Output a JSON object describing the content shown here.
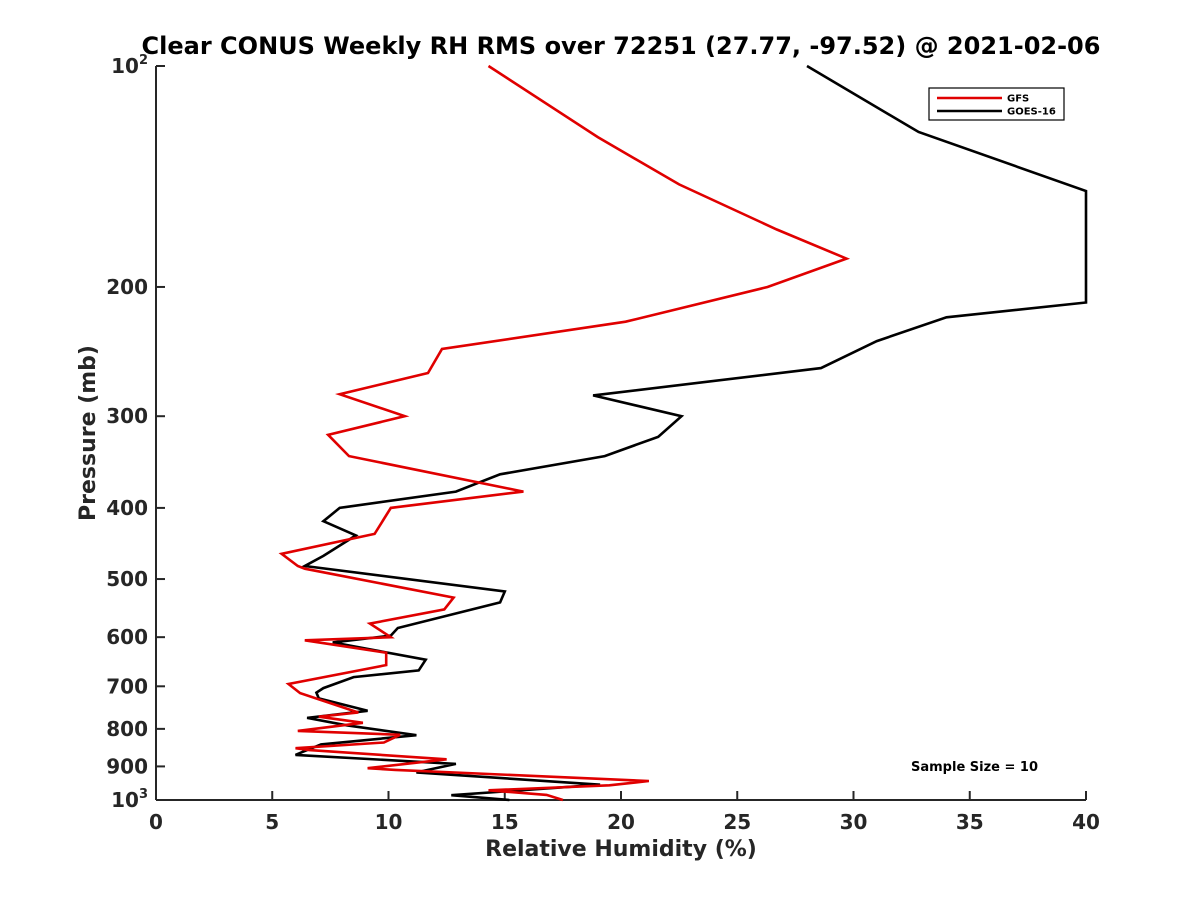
{
  "chart_data": {
    "type": "line",
    "title": "Clear CONUS Weekly RH RMS over 72251 (27.77, -97.52) @ 2021-02-06",
    "xlabel": "Relative Humidity (%)",
    "ylabel": "Pressure (mb)",
    "xlim": [
      0,
      40
    ],
    "ylim": [
      100,
      1000
    ],
    "y_scale": "log",
    "y_reversed": true,
    "x_ticks": [
      0,
      5,
      10,
      15,
      20,
      25,
      30,
      35,
      40
    ],
    "y_ticks": [
      {
        "value": 100,
        "base": "10",
        "exp": "2"
      },
      {
        "value": 200,
        "label": "200"
      },
      {
        "value": 300,
        "label": "300"
      },
      {
        "value": 400,
        "label": "400"
      },
      {
        "value": 500,
        "label": "500"
      },
      {
        "value": 600,
        "label": "600"
      },
      {
        "value": 700,
        "label": "700"
      },
      {
        "value": 800,
        "label": "800"
      },
      {
        "value": 900,
        "label": "900"
      },
      {
        "value": 1000,
        "base": "10",
        "exp": "3"
      }
    ],
    "grid": false,
    "legend_position": "top-right",
    "annotation": "Sample Size = 10",
    "series": [
      {
        "name": "GFS",
        "color": "#e00000",
        "points": [
          {
            "x": 14.3,
            "p": 100
          },
          {
            "x": 19.0,
            "p": 125
          },
          {
            "x": 22.5,
            "p": 145
          },
          {
            "x": 26.7,
            "p": 167
          },
          {
            "x": 29.7,
            "p": 183
          },
          {
            "x": 26.3,
            "p": 200
          },
          {
            "x": 20.2,
            "p": 223
          },
          {
            "x": 12.3,
            "p": 243
          },
          {
            "x": 11.7,
            "p": 262
          },
          {
            "x": 7.9,
            "p": 280
          },
          {
            "x": 10.7,
            "p": 300
          },
          {
            "x": 7.4,
            "p": 318
          },
          {
            "x": 8.3,
            "p": 340
          },
          {
            "x": 15.8,
            "p": 380
          },
          {
            "x": 10.1,
            "p": 400
          },
          {
            "x": 9.4,
            "p": 434
          },
          {
            "x": 5.4,
            "p": 462
          },
          {
            "x": 6.1,
            "p": 480
          },
          {
            "x": 6.4,
            "p": 484
          },
          {
            "x": 12.8,
            "p": 530
          },
          {
            "x": 12.4,
            "p": 550
          },
          {
            "x": 9.2,
            "p": 575
          },
          {
            "x": 10.1,
            "p": 600
          },
          {
            "x": 6.4,
            "p": 606
          },
          {
            "x": 9.9,
            "p": 630
          },
          {
            "x": 9.9,
            "p": 655
          },
          {
            "x": 5.7,
            "p": 695
          },
          {
            "x": 6.2,
            "p": 715
          },
          {
            "x": 8.7,
            "p": 760
          },
          {
            "x": 7.0,
            "p": 770
          },
          {
            "x": 8.9,
            "p": 785
          },
          {
            "x": 6.1,
            "p": 805
          },
          {
            "x": 10.5,
            "p": 815
          },
          {
            "x": 9.8,
            "p": 835
          },
          {
            "x": 6.0,
            "p": 850
          },
          {
            "x": 6.6,
            "p": 855
          },
          {
            "x": 12.5,
            "p": 880
          },
          {
            "x": 9.1,
            "p": 905
          },
          {
            "x": 10.3,
            "p": 910
          },
          {
            "x": 21.2,
            "p": 942
          },
          {
            "x": 19.5,
            "p": 955
          },
          {
            "x": 14.3,
            "p": 970
          },
          {
            "x": 16.8,
            "p": 984
          },
          {
            "x": 17.5,
            "p": 1000
          }
        ]
      },
      {
        "name": "GOES-16",
        "color": "#000000",
        "points": [
          {
            "x": 28.0,
            "p": 100
          },
          {
            "x": 32.8,
            "p": 123
          },
          {
            "x": 40.0,
            "p": 148
          },
          {
            "x": 40.0,
            "p": 210
          },
          {
            "x": 34.0,
            "p": 220
          },
          {
            "x": 31.0,
            "p": 237
          },
          {
            "x": 28.6,
            "p": 258
          },
          {
            "x": 18.8,
            "p": 281
          },
          {
            "x": 22.6,
            "p": 300
          },
          {
            "x": 21.6,
            "p": 320
          },
          {
            "x": 19.3,
            "p": 340
          },
          {
            "x": 14.8,
            "p": 360
          },
          {
            "x": 12.9,
            "p": 380
          },
          {
            "x": 7.9,
            "p": 400
          },
          {
            "x": 7.2,
            "p": 417
          },
          {
            "x": 8.6,
            "p": 436
          },
          {
            "x": 7.2,
            "p": 465
          },
          {
            "x": 6.4,
            "p": 480
          },
          {
            "x": 15.0,
            "p": 520
          },
          {
            "x": 14.8,
            "p": 538
          },
          {
            "x": 10.4,
            "p": 583
          },
          {
            "x": 10.1,
            "p": 597
          },
          {
            "x": 7.6,
            "p": 610
          },
          {
            "x": 11.6,
            "p": 644
          },
          {
            "x": 11.3,
            "p": 666
          },
          {
            "x": 8.5,
            "p": 680
          },
          {
            "x": 7.2,
            "p": 704
          },
          {
            "x": 6.9,
            "p": 714
          },
          {
            "x": 7.0,
            "p": 727
          },
          {
            "x": 9.1,
            "p": 756
          },
          {
            "x": 6.5,
            "p": 773
          },
          {
            "x": 8.2,
            "p": 791
          },
          {
            "x": 11.2,
            "p": 816
          },
          {
            "x": 7.1,
            "p": 840
          },
          {
            "x": 6.3,
            "p": 860
          },
          {
            "x": 6.0,
            "p": 868
          },
          {
            "x": 12.9,
            "p": 893
          },
          {
            "x": 11.2,
            "p": 917
          },
          {
            "x": 19.1,
            "p": 953
          },
          {
            "x": 12.7,
            "p": 985
          },
          {
            "x": 15.2,
            "p": 1000
          }
        ]
      }
    ]
  }
}
